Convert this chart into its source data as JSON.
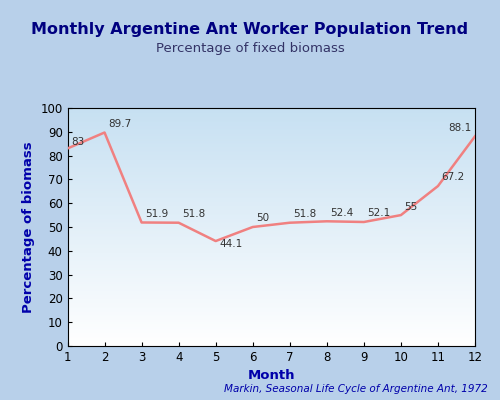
{
  "title": "Monthly Argentine Ant Worker Population Trend",
  "subtitle": "Percentage of fixed biomass",
  "xlabel": "Month",
  "ylabel": "Percentage of biomass",
  "citation": "Markin, Seasonal Life Cycle of Argentine Ant, 1972",
  "months": [
    1,
    2,
    3,
    4,
    5,
    6,
    7,
    8,
    9,
    10,
    11,
    12
  ],
  "values": [
    83.0,
    89.7,
    51.9,
    51.8,
    44.1,
    50.0,
    51.8,
    52.4,
    52.1,
    55.0,
    67.2,
    88.1
  ],
  "labels": [
    "83",
    "89.7",
    "51.9",
    "51.8",
    "44.1",
    "50",
    "51.8",
    "52.4",
    "52.1",
    "55",
    "67.2",
    "88.1"
  ],
  "ylim": [
    0,
    100
  ],
  "xlim": [
    1,
    12
  ],
  "line_color": "#f08080",
  "title_color": "#000080",
  "subtitle_color": "#333366",
  "label_color": "#0000aa",
  "tick_color": "#000000",
  "bg_outer": "#b8d0ea",
  "bg_plot": "#ffffff",
  "annotation_color": "#333333",
  "title_fontsize": 11.5,
  "subtitle_fontsize": 9.5,
  "axis_label_fontsize": 9.5,
  "tick_fontsize": 8.5,
  "annotation_fontsize": 7.5,
  "citation_fontsize": 7.5,
  "ann_offsets_x": [
    0.1,
    0.1,
    0.1,
    0.1,
    0.1,
    0.1,
    0.1,
    0.1,
    0.1,
    0.1,
    0.1,
    -0.1
  ],
  "ann_offsets_y": [
    0.5,
    1.5,
    1.5,
    1.5,
    -3.5,
    1.5,
    1.5,
    1.5,
    1.5,
    1.5,
    1.5,
    1.5
  ],
  "ann_ha": [
    "left",
    "left",
    "left",
    "left",
    "left",
    "left",
    "left",
    "left",
    "left",
    "left",
    "left",
    "right"
  ]
}
